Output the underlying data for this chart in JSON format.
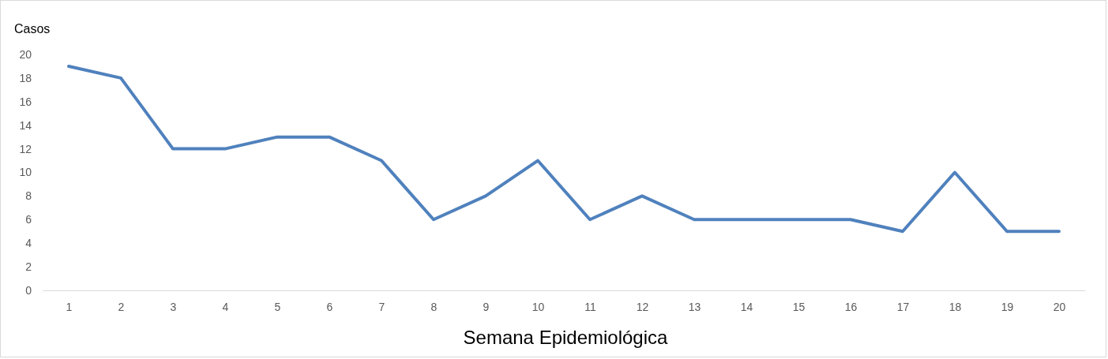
{
  "chart_data": {
    "type": "line",
    "xlabel": "Semana Epidemiológica",
    "ylabel": "Casos",
    "categories": [
      "1",
      "2",
      "3",
      "4",
      "5",
      "6",
      "7",
      "8",
      "9",
      "10",
      "11",
      "12",
      "13",
      "14",
      "15",
      "16",
      "17",
      "18",
      "19",
      "20"
    ],
    "series": [
      {
        "color": "#4f81bd",
        "values": [
          19,
          18,
          12,
          12,
          13,
          13,
          11,
          6,
          8,
          11,
          6,
          8,
          6,
          6,
          6,
          6,
          5,
          10,
          5,
          5
        ]
      }
    ],
    "ylim": [
      0,
      20
    ],
    "yticks": [
      0,
      2,
      4,
      6,
      8,
      10,
      12,
      14,
      16,
      18,
      20
    ],
    "grid": false,
    "marker": "none",
    "line_style": "solid"
  }
}
